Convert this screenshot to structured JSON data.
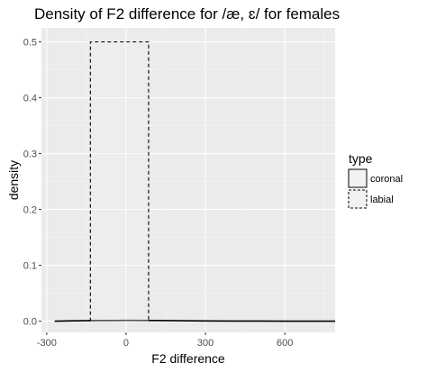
{
  "chart_data": {
    "type": "area",
    "title": "Density of F2 difference for /æ, ɛ/ for females",
    "xlabel": "F2 difference",
    "ylabel": "density",
    "xlim": [
      -320,
      790
    ],
    "ylim": [
      -0.02,
      0.525
    ],
    "x_ticks": [
      -300,
      0,
      300,
      600
    ],
    "x_tick_labels": [
      "-300",
      "0",
      "300",
      "600"
    ],
    "y_ticks": [
      0.0,
      0.1,
      0.2,
      0.3,
      0.4,
      0.5
    ],
    "y_tick_labels": [
      "0.0",
      "0.1",
      "0.2",
      "0.3",
      "0.4",
      "0.5"
    ],
    "grid": true,
    "legend": {
      "title": "type",
      "position": "right",
      "entries": [
        {
          "label": "coronal",
          "fill": "#f2f2f2",
          "linetype": "solid"
        },
        {
          "label": "labial",
          "fill": "#f2f2f2",
          "linetype": "dashed"
        }
      ]
    },
    "series": [
      {
        "name": "coronal",
        "linetype": "solid",
        "x": [
          -270,
          -200,
          -100,
          0,
          100,
          200,
          300,
          400,
          500,
          600,
          700,
          790
        ],
        "y": [
          0.0,
          0.0006,
          0.0012,
          0.0014,
          0.0012,
          0.0008,
          0.0005,
          0.0003,
          0.0002,
          0.0001,
          0.0,
          0.0
        ]
      },
      {
        "name": "labial",
        "linetype": "dashed",
        "x": [
          -135,
          -135,
          85,
          85
        ],
        "y": [
          0.0,
          0.5,
          0.5,
          0.0
        ]
      }
    ]
  },
  "colors": {
    "panel_background": "#ebebeb",
    "grid_major": "#ffffff",
    "grid_minor": "#f5f5f5",
    "line": "#000000",
    "fill": "#f2f2f2"
  }
}
